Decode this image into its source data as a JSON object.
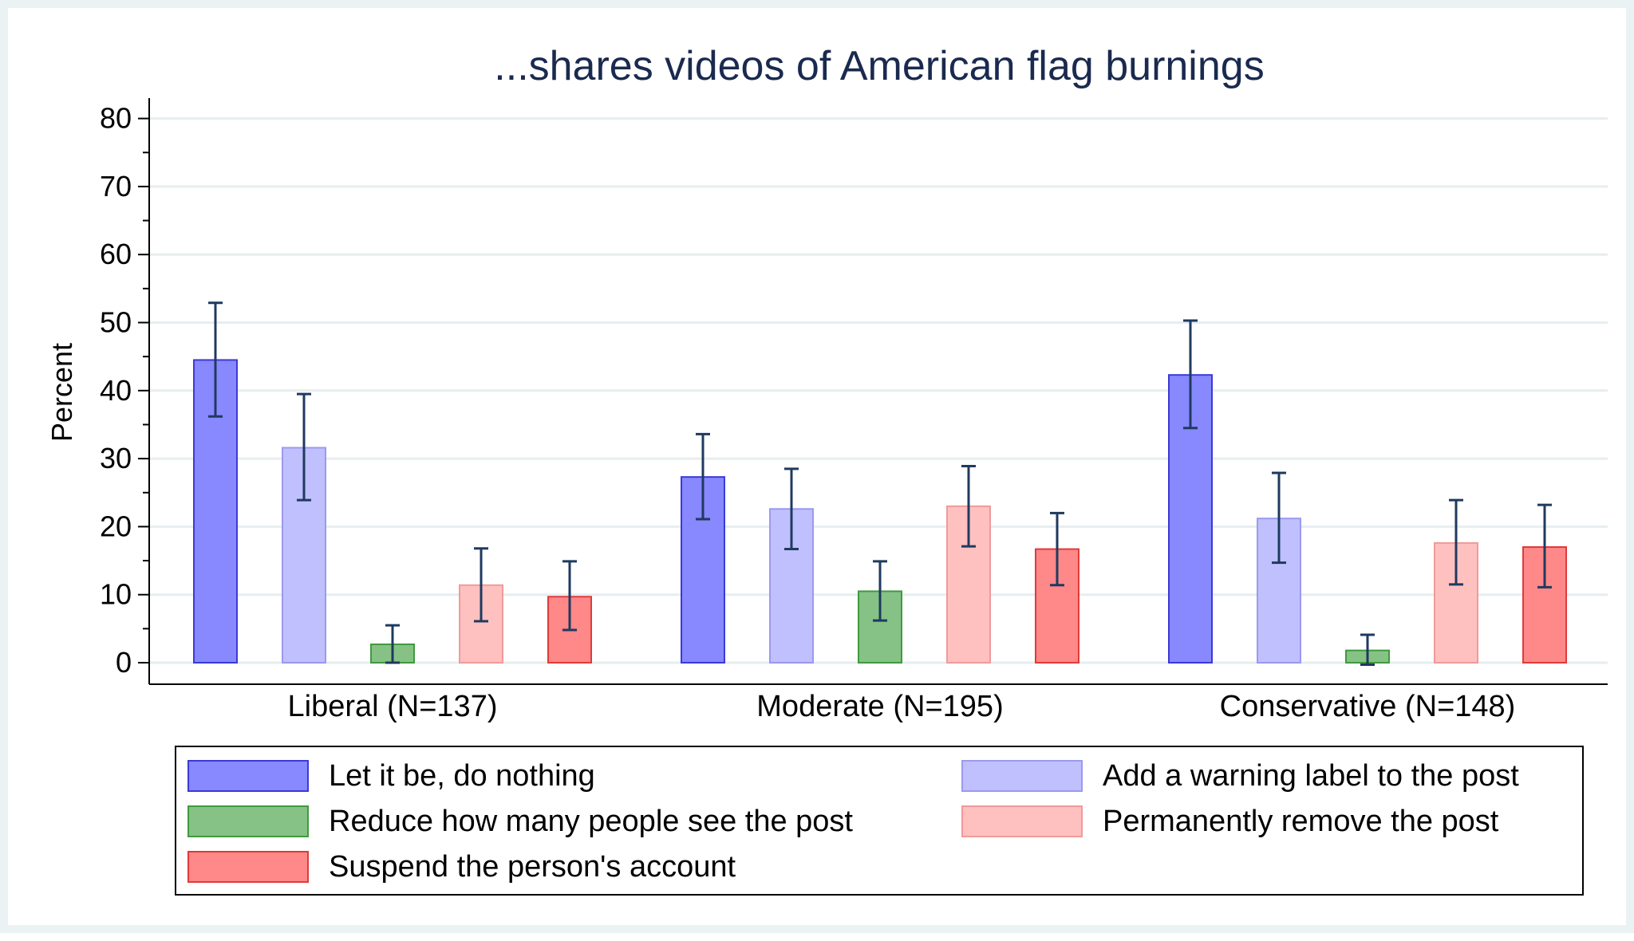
{
  "chart_data": {
    "type": "bar",
    "title": "...shares videos of American flag burnings",
    "ylabel": "Percent",
    "xlabel": "",
    "ylim": [
      0,
      80
    ],
    "yticks": [
      0,
      10,
      20,
      30,
      40,
      50,
      60,
      70,
      80
    ],
    "grid": true,
    "legend_position": "bottom",
    "categories": [
      "Liberal (N=137)",
      "Moderate (N=195)",
      "Conservative (N=148)"
    ],
    "series": [
      {
        "name": "Let it be, do nothing",
        "fill": "#8888ff",
        "stroke": "#3a3ad8",
        "values": [
          44.5,
          27.3,
          42.3
        ],
        "ci_low": [
          36.2,
          21.1,
          34.5
        ],
        "ci_high": [
          52.9,
          33.6,
          50.3
        ]
      },
      {
        "name": "Add a warning label to the post",
        "fill": "#c0c0ff",
        "stroke": "#9a9af0",
        "values": [
          31.6,
          22.6,
          21.2
        ],
        "ci_low": [
          23.9,
          16.7,
          14.7
        ],
        "ci_high": [
          39.5,
          28.5,
          27.9
        ]
      },
      {
        "name": "Reduce how many people see the post",
        "fill": "#86c286",
        "stroke": "#3f9a3f",
        "values": [
          2.7,
          10.5,
          1.8
        ],
        "ci_low": [
          0.0,
          6.2,
          -0.3
        ],
        "ci_high": [
          5.5,
          14.9,
          4.1
        ]
      },
      {
        "name": "Permanently remove the post",
        "fill": "#ffc0c0",
        "stroke": "#f09a9a",
        "values": [
          11.4,
          23.0,
          17.6
        ],
        "ci_low": [
          6.1,
          17.1,
          11.5
        ],
        "ci_high": [
          16.8,
          28.9,
          23.9
        ]
      },
      {
        "name": "Suspend the person's account",
        "fill": "#ff8888",
        "stroke": "#e03a3a",
        "values": [
          9.7,
          16.7,
          17.0
        ],
        "ci_low": [
          4.8,
          11.4,
          11.1
        ],
        "ci_high": [
          14.9,
          22.0,
          23.2
        ]
      }
    ]
  }
}
